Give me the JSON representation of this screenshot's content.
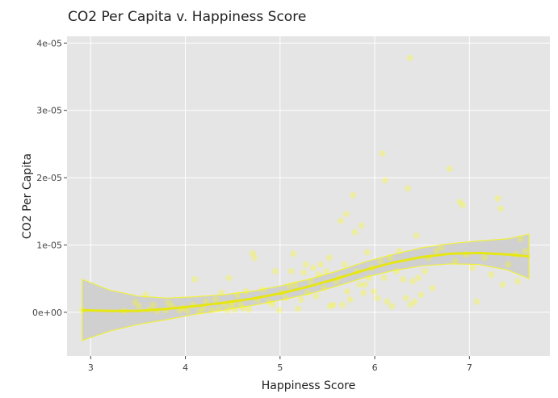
{
  "chart_data": {
    "type": "scatter",
    "title": "CO2 Per Capita v. Happiness Score",
    "xlabel": "Happiness Score",
    "ylabel": "CO2 Per Capita",
    "xlim": [
      2.75,
      7.85
    ],
    "ylim": [
      -6.5e-06,
      4.1e-05
    ],
    "x_ticks": [
      {
        "value": 3,
        "label": "3"
      },
      {
        "value": 4,
        "label": "4"
      },
      {
        "value": 5,
        "label": "5"
      },
      {
        "value": 6,
        "label": "6"
      },
      {
        "value": 7,
        "label": "7"
      }
    ],
    "y_ticks": [
      {
        "value": 0,
        "label": "0e+00"
      },
      {
        "value": 1e-05,
        "label": "1e-05"
      },
      {
        "value": 2e-05,
        "label": "2e-05"
      },
      {
        "value": 3e-05,
        "label": "3e-05"
      },
      {
        "value": 4e-05,
        "label": "4e-05"
      }
    ],
    "grid": true,
    "colors": {
      "panel_background": "#E5E5E5",
      "grid": "#FFFFFF",
      "points": "#FFFF00",
      "smooth_line": "#E8E800",
      "ribbon_fill": "#D0D0D0",
      "ribbon_outline": "#F0F040"
    },
    "points": [
      [
        2.91,
        3e-07
      ],
      [
        3.35,
        2e-07
      ],
      [
        3.47,
        1.5e-06
      ],
      [
        3.51,
        9e-07
      ],
      [
        3.58,
        2.6e-06
      ],
      [
        3.62,
        4e-07
      ],
      [
        3.66,
        1.1e-06
      ],
      [
        3.7,
        2e-07
      ],
      [
        3.79,
        3e-07
      ],
      [
        3.82,
        1.4e-06
      ],
      [
        3.86,
        9e-07
      ],
      [
        3.94,
        3e-07
      ],
      [
        3.97,
        6e-07
      ],
      [
        4.02,
        2e-07
      ],
      [
        4.08,
        1.1e-06
      ],
      [
        4.1,
        4.9e-06
      ],
      [
        4.15,
        1e-07
      ],
      [
        4.19,
        6e-07
      ],
      [
        4.22,
        1.6e-06
      ],
      [
        4.28,
        3e-07
      ],
      [
        4.32,
        1.9e-06
      ],
      [
        4.35,
        5e-07
      ],
      [
        4.38,
        2.9e-06
      ],
      [
        4.41,
        1.2e-06
      ],
      [
        4.44,
        3e-07
      ],
      [
        4.46,
        5.1e-06
      ],
      [
        4.48,
        9e-07
      ],
      [
        4.5,
        1.4e-06
      ],
      [
        4.52,
        4e-07
      ],
      [
        4.55,
        2.6e-06
      ],
      [
        4.58,
        1.1e-06
      ],
      [
        4.61,
        6e-07
      ],
      [
        4.64,
        3.1e-06
      ],
      [
        4.67,
        4e-07
      ],
      [
        4.71,
        8.8e-06
      ],
      [
        4.73,
        8.1e-06
      ],
      [
        4.76,
        1.9e-06
      ],
      [
        4.82,
        3.4e-06
      ],
      [
        4.88,
        1.6e-06
      ],
      [
        4.92,
        1.2e-06
      ],
      [
        4.95,
        6.1e-06
      ],
      [
        4.99,
        3e-07
      ],
      [
        5.02,
        2.9e-06
      ],
      [
        5.06,
        2.1e-06
      ],
      [
        5.1,
        3.9e-06
      ],
      [
        5.12,
        6.1e-06
      ],
      [
        5.14,
        8.7e-06
      ],
      [
        5.16,
        4.1e-06
      ],
      [
        5.19,
        5e-07
      ],
      [
        5.22,
        1.9e-06
      ],
      [
        5.25,
        5.9e-06
      ],
      [
        5.27,
        7.1e-06
      ],
      [
        5.29,
        2.9e-06
      ],
      [
        5.32,
        4.6e-06
      ],
      [
        5.35,
        6.6e-06
      ],
      [
        5.38,
        2.4e-06
      ],
      [
        5.41,
        5.6e-06
      ],
      [
        5.43,
        7.1e-06
      ],
      [
        5.46,
        3.6e-06
      ],
      [
        5.49,
        6.1e-06
      ],
      [
        5.52,
        8.1e-06
      ],
      [
        5.53,
        9e-07
      ],
      [
        5.56,
        1.1e-06
      ],
      [
        5.59,
        4.6e-06
      ],
      [
        5.62,
        5.1e-06
      ],
      [
        5.64,
        1.36e-05
      ],
      [
        5.66,
        1.1e-06
      ],
      [
        5.68,
        7.1e-06
      ],
      [
        5.7,
        1.46e-05
      ],
      [
        5.71,
        3.1e-06
      ],
      [
        5.74,
        1.9e-06
      ],
      [
        5.77,
        1.74e-05
      ],
      [
        5.79,
        1.19e-05
      ],
      [
        5.81,
        6.1e-06
      ],
      [
        5.84,
        4.1e-06
      ],
      [
        5.86,
        1.29e-05
      ],
      [
        5.88,
        2.9e-06
      ],
      [
        5.9,
        4.1e-06
      ],
      [
        5.92,
        8.9e-06
      ],
      [
        5.94,
        5.1e-06
      ],
      [
        5.97,
        6.6e-06
      ],
      [
        5.99,
        3.1e-06
      ],
      [
        6.03,
        2.1e-06
      ],
      [
        6.06,
        7.6e-06
      ],
      [
        6.08,
        2.36e-05
      ],
      [
        6.1,
        5.1e-06
      ],
      [
        6.11,
        1.96e-05
      ],
      [
        6.13,
        1.6e-06
      ],
      [
        6.16,
        8.1e-06
      ],
      [
        6.18,
        9e-07
      ],
      [
        6.23,
        6.1e-06
      ],
      [
        6.26,
        9.1e-06
      ],
      [
        6.3,
        4.9e-06
      ],
      [
        6.33,
        2.1e-06
      ],
      [
        6.35,
        1.84e-05
      ],
      [
        6.37,
        3.78e-05
      ],
      [
        6.38,
        1.1e-06
      ],
      [
        6.4,
        4.6e-06
      ],
      [
        6.42,
        1.6e-06
      ],
      [
        6.44,
        1.14e-05
      ],
      [
        6.46,
        5.1e-06
      ],
      [
        6.49,
        2.6e-06
      ],
      [
        6.53,
        6.1e-06
      ],
      [
        6.57,
        8.1e-06
      ],
      [
        6.61,
        3.6e-06
      ],
      [
        6.65,
        9.1e-06
      ],
      [
        6.7,
        9.6e-06
      ],
      [
        6.79,
        2.13e-05
      ],
      [
        6.85,
        7.6e-06
      ],
      [
        6.9,
        1.64e-05
      ],
      [
        6.93,
        1.59e-05
      ],
      [
        6.96,
        8.6e-06
      ],
      [
        7.03,
        6.6e-06
      ],
      [
        7.08,
        1.6e-06
      ],
      [
        7.16,
        8.1e-06
      ],
      [
        7.23,
        5.6e-06
      ],
      [
        7.3,
        1.69e-05
      ],
      [
        7.33,
        1.54e-05
      ],
      [
        7.35,
        4.1e-06
      ],
      [
        7.41,
        7.1e-06
      ],
      [
        7.49,
        8.6e-06
      ],
      [
        7.51,
        4.6e-06
      ],
      [
        7.54,
        1.09e-05
      ],
      [
        7.59,
        9.1e-06
      ]
    ],
    "smooth": [
      {
        "x": 2.91,
        "y": 3e-07,
        "lower": -4.2e-06,
        "upper": 4.9e-06
      },
      {
        "x": 3.2,
        "y": 2e-07,
        "lower": -2.8e-06,
        "upper": 3.3e-06
      },
      {
        "x": 3.5,
        "y": 2e-07,
        "lower": -1.8e-06,
        "upper": 2.4e-06
      },
      {
        "x": 3.8,
        "y": 5e-07,
        "lower": -1.1e-06,
        "upper": 2.1e-06
      },
      {
        "x": 4.1,
        "y": 9e-07,
        "lower": -3e-07,
        "upper": 2.3e-06
      },
      {
        "x": 4.4,
        "y": 1.4e-06,
        "lower": 3e-07,
        "upper": 2.6e-06
      },
      {
        "x": 4.7,
        "y": 2e-06,
        "lower": 1e-06,
        "upper": 3.1e-06
      },
      {
        "x": 5.0,
        "y": 2.8e-06,
        "lower": 1.8e-06,
        "upper": 3.9e-06
      },
      {
        "x": 5.3,
        "y": 3.8e-06,
        "lower": 2.7e-06,
        "upper": 4.9e-06
      },
      {
        "x": 5.6,
        "y": 5e-06,
        "lower": 3.9e-06,
        "upper": 6.1e-06
      },
      {
        "x": 5.9,
        "y": 6.3e-06,
        "lower": 5.2e-06,
        "upper": 7.5e-06
      },
      {
        "x": 6.2,
        "y": 7.4e-06,
        "lower": 6.2e-06,
        "upper": 8.6e-06
      },
      {
        "x": 6.5,
        "y": 8.2e-06,
        "lower": 6.9e-06,
        "upper": 9.6e-06
      },
      {
        "x": 6.8,
        "y": 8.7e-06,
        "lower": 7.2e-06,
        "upper": 1.02e-05
      },
      {
        "x": 7.1,
        "y": 8.8e-06,
        "lower": 7.1e-06,
        "upper": 1.06e-05
      },
      {
        "x": 7.4,
        "y": 8.6e-06,
        "lower": 6.3e-06,
        "upper": 1.09e-05
      },
      {
        "x": 7.63,
        "y": 8.3e-06,
        "lower": 5e-06,
        "upper": 1.16e-05
      }
    ]
  }
}
